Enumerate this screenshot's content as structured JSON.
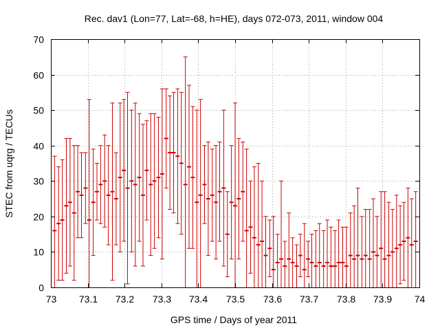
{
  "chart_data": {
    "type": "scatter",
    "title": "Rec. dav1 (Lon=77, Lat=-68, h=HE), days 072-073, 2011, window 004",
    "xlabel": "GPS time / Days of year 2011",
    "ylabel": "STEC from uqrg / TECUs",
    "xlim": [
      73,
      74
    ],
    "ylim": [
      0,
      70
    ],
    "x_ticks": [
      "73",
      "73.1",
      "73.2",
      "73.3",
      "73.4",
      "73.5",
      "73.6",
      "73.7",
      "73.8",
      "73.9",
      "74"
    ],
    "y_ticks": [
      "0",
      "10",
      "20",
      "30",
      "40",
      "50",
      "60",
      "70"
    ],
    "grid": true,
    "series_color": "#cc0000",
    "series": [
      {
        "errorbars": true,
        "x": [
          73.01,
          73.021,
          73.031,
          73.042,
          73.052,
          73.063,
          73.073,
          73.083,
          73.094,
          73.104,
          73.115,
          73.125,
          73.135,
          73.146,
          73.156,
          73.167,
          73.177,
          73.188,
          73.198,
          73.208,
          73.219,
          73.229,
          73.24,
          73.25,
          73.26,
          73.271,
          73.281,
          73.292,
          73.302,
          73.313,
          73.323,
          73.333,
          73.344,
          73.354,
          73.365,
          73.375,
          73.385,
          73.396,
          73.406,
          73.417,
          73.427,
          73.438,
          73.448,
          73.458,
          73.469,
          73.479,
          73.49,
          73.5,
          73.51,
          73.521,
          73.531,
          73.542,
          73.552,
          73.563,
          73.573,
          73.583,
          73.594,
          73.604,
          73.615,
          73.625,
          73.635,
          73.646,
          73.656,
          73.667,
          73.677,
          73.688,
          73.698,
          73.708,
          73.719,
          73.729,
          73.74,
          73.75,
          73.76,
          73.771,
          73.781,
          73.792,
          73.802,
          73.813,
          73.823,
          73.833,
          73.844,
          73.854,
          73.865,
          73.875,
          73.885,
          73.896,
          73.906,
          73.917,
          73.927,
          73.938,
          73.948,
          73.958,
          73.969,
          73.979,
          73.99
        ],
        "y": [
          16,
          18,
          19,
          23,
          24,
          21,
          27,
          26,
          28,
          19,
          24,
          27,
          29,
          30,
          26,
          27,
          25,
          31,
          33,
          28,
          30,
          29,
          31,
          26,
          33,
          29,
          30,
          31,
          32,
          42,
          38,
          38,
          37,
          35,
          29,
          34,
          31,
          24,
          26,
          29,
          25,
          26,
          24,
          27,
          28,
          15,
          24,
          23,
          25,
          27,
          16,
          17,
          14,
          12,
          13,
          9,
          11,
          5,
          7,
          8,
          6,
          8,
          7,
          6,
          9,
          5,
          8,
          7,
          6,
          7,
          6,
          7,
          6,
          6,
          7,
          7,
          6,
          9,
          8,
          9,
          8,
          9,
          8,
          10,
          9,
          11,
          8,
          9,
          10,
          11,
          12,
          13,
          14,
          12,
          13
        ],
        "err": [
          21,
          16,
          17,
          19,
          18,
          19,
          13,
          12,
          10,
          34,
          15,
          8,
          11,
          13,
          14,
          25,
          13,
          21,
          20,
          27,
          20,
          23,
          18,
          20,
          14,
          20,
          19,
          17,
          24,
          14,
          16,
          17,
          19,
          20,
          36,
          23,
          20,
          26,
          27,
          11,
          16,
          13,
          16,
          14,
          22,
          12,
          16,
          29,
          17,
          14,
          23,
          13,
          20,
          23,
          17,
          11,
          8,
          15,
          8,
          22,
          7,
          13,
          7,
          6,
          6,
          13,
          5,
          8,
          10,
          11,
          10,
          12,
          11,
          10,
          12,
          10,
          11,
          12,
          15,
          19,
          12,
          13,
          14,
          15,
          11,
          16,
          19,
          15,
          12,
          15,
          11,
          11,
          14,
          13,
          14
        ]
      }
    ]
  }
}
